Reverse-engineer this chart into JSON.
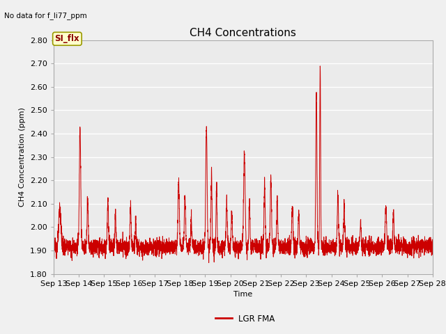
{
  "title": "CH4 Concentrations",
  "xlabel": "Time",
  "ylabel": "CH4 Concentration (ppm)",
  "annotation_text": "No data for f_li77_ppm",
  "cursor_label": "SI_flx",
  "legend_label": "LGR FMA",
  "line_color": "#cc0000",
  "ylim": [
    1.8,
    2.8
  ],
  "yticks": [
    1.8,
    1.9,
    2.0,
    2.1,
    2.2,
    2.3,
    2.4,
    2.5,
    2.6,
    2.7,
    2.8
  ],
  "x_start_day": 13,
  "x_end_day": 28,
  "xtick_days": [
    13,
    14,
    15,
    16,
    17,
    18,
    19,
    20,
    21,
    22,
    23,
    24,
    25,
    26,
    27,
    28
  ],
  "fig_bg_color": "#f0f0f0",
  "plot_bg_color": "#ebebeb",
  "grid_color": "#ffffff",
  "title_fontsize": 11,
  "label_fontsize": 8,
  "tick_fontsize": 8
}
